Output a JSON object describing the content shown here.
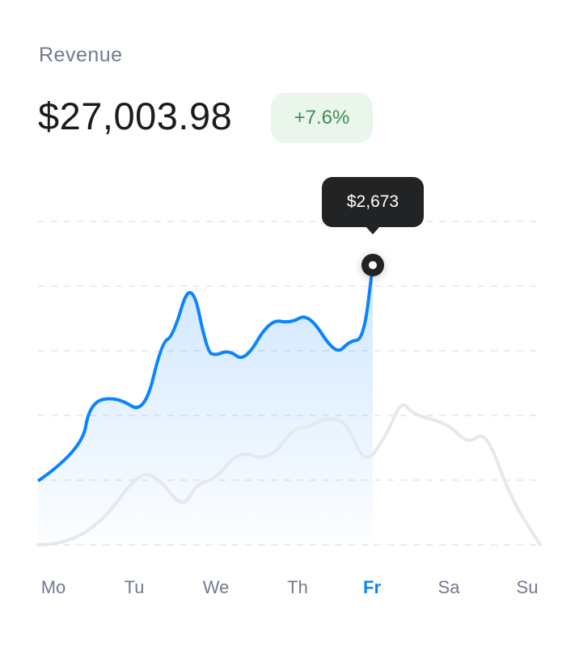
{
  "header": {
    "label": "Revenue",
    "total": "$27,003.98",
    "change": "+7.6%"
  },
  "tooltip": {
    "value": "$2,673"
  },
  "colors": {
    "accent": "#0a84ff",
    "comparison": "#e5e8ec",
    "positive": "#3d8f50",
    "positive_bg": "#eaf5ec",
    "tooltip_bg": "#222325"
  },
  "chart_data": {
    "type": "area",
    "categories": [
      "Mo",
      "Tu",
      "We",
      "Th",
      "Fr",
      "Sa",
      "Su"
    ],
    "active_category": "Fr",
    "ylim": [
      0,
      3090
    ],
    "grid": true,
    "grid_lines": [
      0,
      618,
      1236,
      1854,
      2472,
      3090
    ],
    "series": [
      {
        "role": "current",
        "color": "#0a84ff",
        "points": [
          [
            0,
            610
          ],
          [
            0.52,
            896
          ],
          [
            0.62,
            1367
          ],
          [
            0.95,
            1414
          ],
          [
            1.27,
            1244
          ],
          [
            1.48,
            1939
          ],
          [
            1.61,
            1985
          ],
          [
            1.83,
            2572
          ],
          [
            2.02,
            1846
          ],
          [
            2.12,
            1808
          ],
          [
            2.28,
            1862
          ],
          [
            2.47,
            1746
          ],
          [
            2.77,
            2155
          ],
          [
            3.02,
            2117
          ],
          [
            3.23,
            2217
          ],
          [
            3.56,
            1808
          ],
          [
            3.72,
            1947
          ],
          [
            3.89,
            1962
          ],
          [
            4.0,
            2673
          ]
        ]
      },
      {
        "role": "previous",
        "color": "#e5e8ec",
        "points": [
          [
            0,
            0
          ],
          [
            0.31,
            0
          ],
          [
            0.78,
            224
          ],
          [
            1.21,
            703
          ],
          [
            1.45,
            633
          ],
          [
            1.73,
            340
          ],
          [
            1.9,
            587
          ],
          [
            2.12,
            626
          ],
          [
            2.4,
            904
          ],
          [
            2.75,
            796
          ],
          [
            3.07,
            1128
          ],
          [
            3.21,
            1112
          ],
          [
            3.42,
            1213
          ],
          [
            3.68,
            1190
          ],
          [
            3.91,
            742
          ],
          [
            4.19,
            1089
          ],
          [
            4.34,
            1383
          ],
          [
            4.48,
            1244
          ],
          [
            4.9,
            1159
          ],
          [
            5.14,
            958
          ],
          [
            5.35,
            1097
          ],
          [
            5.65,
            440
          ],
          [
            6.0,
            0
          ]
        ]
      }
    ],
    "highlight": {
      "category": "Fr",
      "value": 2673
    }
  }
}
